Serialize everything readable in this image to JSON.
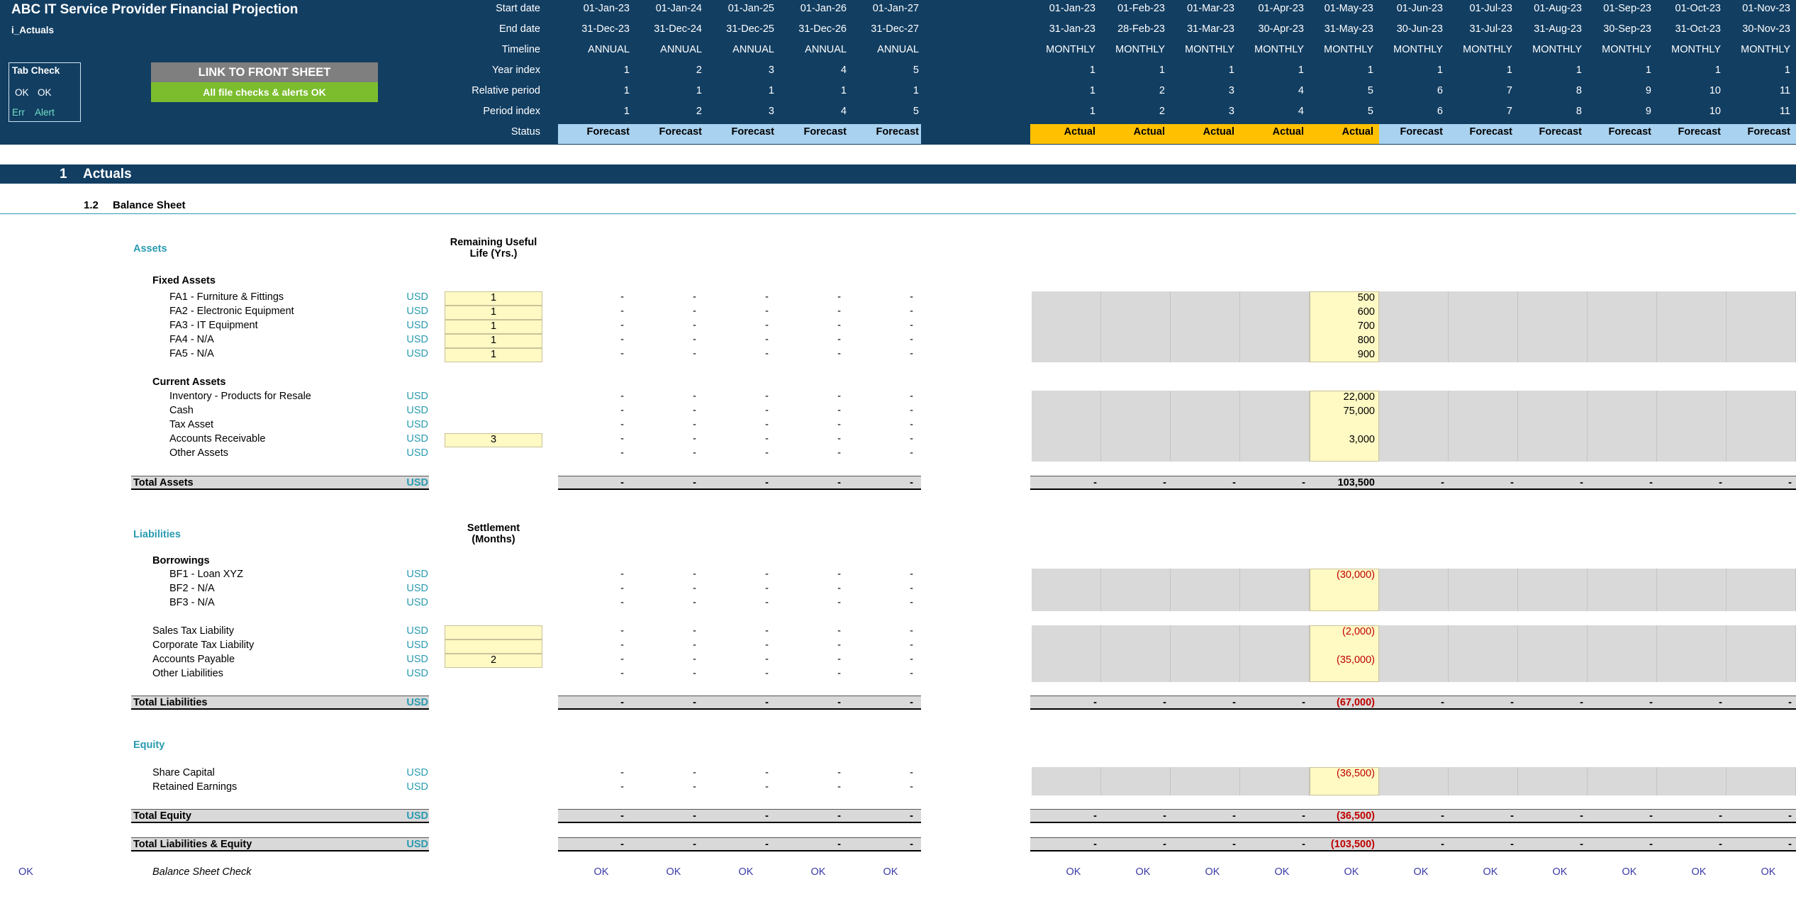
{
  "header": {
    "title": "ABC IT Service Provider Financial Projection",
    "sheet": "i_Actuals",
    "tabcheck": {
      "title": "Tab Check",
      "ok1": "OK",
      "ok2": "OK",
      "err": "Err",
      "alert": "Alert"
    },
    "link_button": "LINK TO FRONT SHEET",
    "checks_banner": "All file checks & alerts OK",
    "row_labels": [
      "Start date",
      "End date",
      "Timeline",
      "Year index",
      "Relative period",
      "Period index",
      "Status"
    ]
  },
  "annual": {
    "start": [
      "01-Jan-23",
      "01-Jan-24",
      "01-Jan-25",
      "01-Jan-26",
      "01-Jan-27"
    ],
    "end": [
      "31-Dec-23",
      "31-Dec-24",
      "31-Dec-25",
      "31-Dec-26",
      "31-Dec-27"
    ],
    "timeline": [
      "ANNUAL",
      "ANNUAL",
      "ANNUAL",
      "ANNUAL",
      "ANNUAL"
    ],
    "year_index": [
      "1",
      "2",
      "3",
      "4",
      "5"
    ],
    "relative": [
      "1",
      "1",
      "1",
      "1",
      "1"
    ],
    "period": [
      "1",
      "2",
      "3",
      "4",
      "5"
    ],
    "status": [
      "Forecast",
      "Forecast",
      "Forecast",
      "Forecast",
      "Forecast"
    ]
  },
  "monthly": {
    "start": [
      "01-Jan-23",
      "01-Feb-23",
      "01-Mar-23",
      "01-Apr-23",
      "01-May-23",
      "01-Jun-23",
      "01-Jul-23",
      "01-Aug-23",
      "01-Sep-23",
      "01-Oct-23",
      "01-Nov-23"
    ],
    "end": [
      "31-Jan-23",
      "28-Feb-23",
      "31-Mar-23",
      "30-Apr-23",
      "31-May-23",
      "30-Jun-23",
      "31-Jul-23",
      "31-Aug-23",
      "30-Sep-23",
      "31-Oct-23",
      "30-Nov-23"
    ],
    "timeline": [
      "MONTHLY",
      "MONTHLY",
      "MONTHLY",
      "MONTHLY",
      "MONTHLY",
      "MONTHLY",
      "MONTHLY",
      "MONTHLY",
      "MONTHLY",
      "MONTHLY",
      "MONTHLY"
    ],
    "year_index": [
      "1",
      "1",
      "1",
      "1",
      "1",
      "1",
      "1",
      "1",
      "1",
      "1",
      "1"
    ],
    "relative": [
      "1",
      "2",
      "3",
      "4",
      "5",
      "6",
      "7",
      "8",
      "9",
      "10",
      "11"
    ],
    "period": [
      "1",
      "2",
      "3",
      "4",
      "5",
      "6",
      "7",
      "8",
      "9",
      "10",
      "11"
    ],
    "status": [
      "Actual",
      "Actual",
      "Actual",
      "Actual",
      "Actual",
      "Forecast",
      "Forecast",
      "Forecast",
      "Forecast",
      "Forecast",
      "Forecast"
    ]
  },
  "section": {
    "num": "1",
    "title": "Actuals",
    "sub_num": "1.2",
    "sub_title": "Balance Sheet"
  },
  "assets": {
    "title": "Assets",
    "col_head": "Remaining Useful Life (Yrs.)",
    "fixed_head": "Fixed Assets",
    "fixed": [
      {
        "label": "FA1 - Furniture & Fittings",
        "unit": "USD",
        "input": "1",
        "may": "500"
      },
      {
        "label": "FA2 - Electronic Equipment",
        "unit": "USD",
        "input": "1",
        "may": "600"
      },
      {
        "label": "FA3 - IT Equipment",
        "unit": "USD",
        "input": "1",
        "may": "700"
      },
      {
        "label": "FA4 - N/A",
        "unit": "USD",
        "input": "1",
        "may": "800"
      },
      {
        "label": "FA5 - N/A",
        "unit": "USD",
        "input": "1",
        "may": "900"
      }
    ],
    "current_head": "Current Assets",
    "current": [
      {
        "label": "Inventory - Products for Resale",
        "unit": "USD",
        "input": "",
        "may": "22,000"
      },
      {
        "label": "Cash",
        "unit": "USD",
        "input": "",
        "may": "75,000"
      },
      {
        "label": "Tax Asset",
        "unit": "USD",
        "input": "",
        "may": ""
      },
      {
        "label": "Accounts Receivable",
        "unit": "USD",
        "input": "3",
        "may": "3,000"
      },
      {
        "label": "Other Assets",
        "unit": "USD",
        "input": "",
        "may": ""
      }
    ],
    "total": {
      "label": "Total Assets",
      "unit": "USD",
      "may": "103,500"
    }
  },
  "liabilities": {
    "title": "Liabilities",
    "col_head": "Settlement (Months)",
    "borrow_head": "Borrowings",
    "borrow": [
      {
        "label": "BF1 - Loan XYZ",
        "unit": "USD",
        "may": "(30,000)"
      },
      {
        "label": "BF2 - N/A",
        "unit": "USD",
        "may": ""
      },
      {
        "label": "BF3 - N/A",
        "unit": "USD",
        "may": ""
      }
    ],
    "other": [
      {
        "label": "Sales Tax Liability",
        "unit": "USD",
        "input": "",
        "may": "(2,000)"
      },
      {
        "label": "Corporate Tax Liability",
        "unit": "USD",
        "input": "",
        "may": ""
      },
      {
        "label": "Accounts Payable",
        "unit": "USD",
        "input": "2",
        "may": "(35,000)"
      },
      {
        "label": "Other Liabilities",
        "unit": "USD",
        "input": "",
        "may": ""
      }
    ],
    "total": {
      "label": "Total Liabilities",
      "unit": "USD",
      "may": "(67,000)"
    }
  },
  "equity": {
    "title": "Equity",
    "rows": [
      {
        "label": "Share Capital",
        "unit": "USD",
        "may": "(36,500)"
      },
      {
        "label": "Retained Earnings",
        "unit": "USD",
        "may": ""
      }
    ],
    "total": {
      "label": "Total Equity",
      "unit": "USD",
      "may": "(36,500)"
    },
    "total_le": {
      "label": "Total Liabilities & Equity",
      "unit": "USD",
      "may": "(103,500)"
    }
  },
  "check": {
    "label": "Balance Sheet Check",
    "left": "OK",
    "value": "OK"
  },
  "dash": "-",
  "colors": {
    "header": "#123e62",
    "forecast": "#a9d2f0",
    "actual": "#ffc000",
    "link": "#7f7f7f",
    "ok_green": "#7cbd2e",
    "teal": "#2a9bb0"
  }
}
